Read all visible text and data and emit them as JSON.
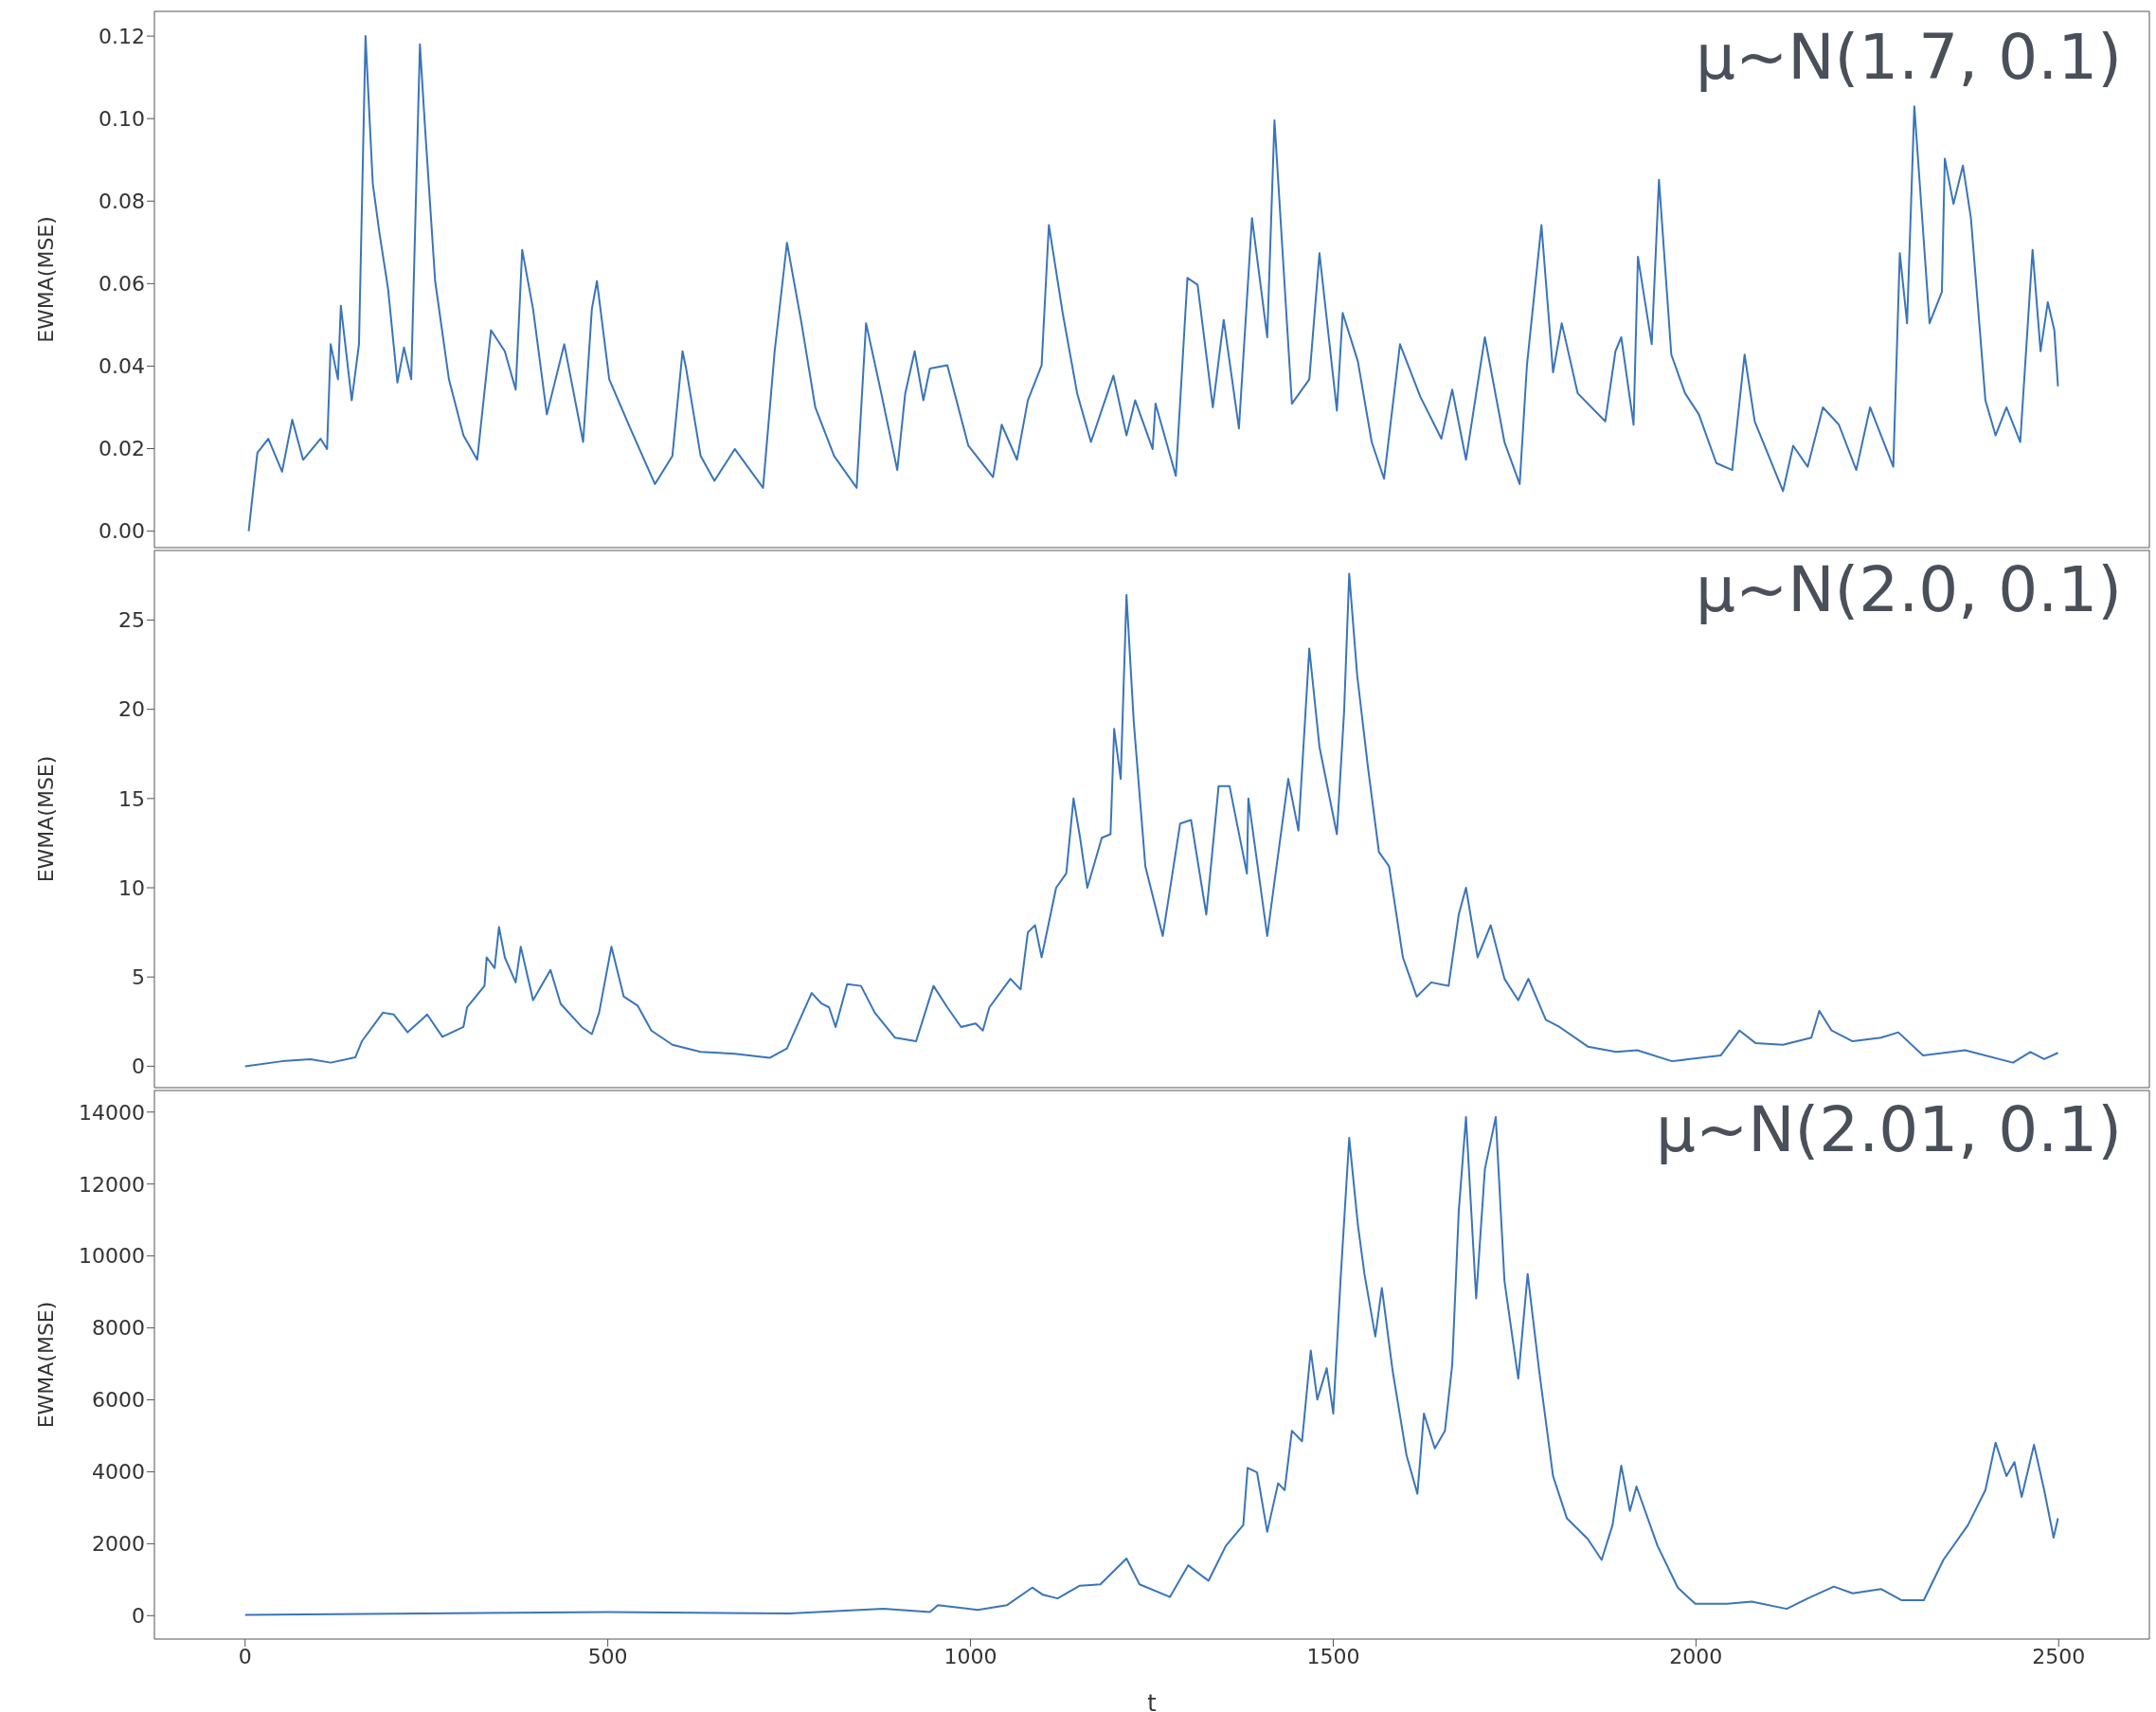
{
  "chart_data": [
    {
      "type": "line",
      "ylabel": "EWMA(MSE)",
      "annotations": [
        "μ~N(1.7, 0.1)"
      ],
      "xlim": [
        -125,
        2625
      ],
      "ylim": [
        -0.004,
        0.126
      ],
      "yticks": [
        {
          "value": 0,
          "label": "0.00"
        },
        0.02,
        0.04,
        0.06,
        0.08,
        {
          "value": 0.1,
          "label": "0.10"
        },
        0.12
      ],
      "tick_labels": "y",
      "marker": "none",
      "line_style": "solid",
      "series": [
        {
          "color": "#3a75b9",
          "x": [
            5,
            11,
            17,
            32,
            51,
            65,
            80,
            104,
            113,
            118,
            128,
            132,
            147,
            157,
            166,
            176,
            185,
            197,
            210,
            219,
            229,
            241,
            248,
            262,
            281,
            301,
            320,
            339,
            358,
            373,
            382,
            397,
            416,
            440,
            466,
            478,
            485,
            502,
            531,
            565,
            589,
            603,
            608,
            628,
            647,
            675,
            714,
            730,
            747,
            767,
            786,
            812,
            843,
            856,
            877,
            899,
            910,
            923,
            935,
            944,
            968,
            997,
            1031,
            1043,
            1064,
            1079,
            1098,
            1108,
            1127,
            1147,
            1166,
            1197,
            1215,
            1227,
            1251,
            1255,
            1283,
            1299,
            1313,
            1334,
            1349,
            1370,
            1388,
            1409,
            1419,
            1443,
            1467,
            1481,
            1505,
            1513,
            1534,
            1553,
            1570,
            1592,
            1620,
            1649,
            1664,
            1683,
            1709,
            1736,
            1757,
            1767,
            1787,
            1803,
            1815,
            1837,
            1875,
            1889,
            1897,
            1914,
            1920,
            1939,
            1949,
            1966,
            1985,
            2004,
            2028,
            2050,
            2067,
            2081,
            2120,
            2134,
            2154,
            2175,
            2197,
            2221,
            2240,
            2272,
            2281,
            2291,
            2301,
            2322,
            2339,
            2343,
            2355,
            2368,
            2379,
            2399,
            2413,
            2428,
            2447,
            2464,
            2475,
            2485,
            2494,
            2499
          ],
          "values": [
            0.0,
            0.0097,
            0.019,
            0.0224,
            0.0144,
            0.027,
            0.0173,
            0.0224,
            0.0199,
            0.0453,
            0.0368,
            0.0546,
            0.0317,
            0.0453,
            0.12,
            0.0843,
            0.0725,
            0.0589,
            0.036,
            0.0445,
            0.0368,
            0.118,
            0.098,
            0.0606,
            0.0368,
            0.0232,
            0.0173,
            0.0487,
            0.0436,
            0.0343,
            0.0682,
            0.0538,
            0.0283,
            0.0453,
            0.0216,
            0.0538,
            0.0606,
            0.0368,
            0.0249,
            0.0114,
            0.0182,
            0.0436,
            0.0394,
            0.0182,
            0.0122,
            0.0199,
            0.0105,
            0.0436,
            0.0699,
            0.0504,
            0.03,
            0.0182,
            0.0105,
            0.0504,
            0.0334,
            0.0148,
            0.0334,
            0.0436,
            0.0317,
            0.0394,
            0.0402,
            0.0207,
            0.0131,
            0.0258,
            0.0173,
            0.0317,
            0.0402,
            0.0742,
            0.0529,
            0.0334,
            0.0216,
            0.0377,
            0.0232,
            0.0317,
            0.0199,
            0.0309,
            0.0134,
            0.0614,
            0.0597,
            0.03,
            0.0512,
            0.0249,
            0.0759,
            0.047,
            0.0996,
            0.0309,
            0.0368,
            0.0674,
            0.0292,
            0.0529,
            0.0411,
            0.0216,
            0.0127,
            0.0453,
            0.0326,
            0.0224,
            0.0343,
            0.0173,
            0.047,
            0.0216,
            0.0114,
            0.0402,
            0.0742,
            0.0385,
            0.0504,
            0.0334,
            0.0266,
            0.0436,
            0.047,
            0.0258,
            0.0665,
            0.0453,
            0.0852,
            0.0428,
            0.0334,
            0.0283,
            0.0165,
            0.0148,
            0.0428,
            0.0266,
            0.0097,
            0.0207,
            0.0156,
            0.03,
            0.0258,
            0.0148,
            0.03,
            0.0156,
            0.0674,
            0.0504,
            0.103,
            0.0504,
            0.058,
            0.0903,
            0.0793,
            0.0886,
            0.0759,
            0.0317,
            0.0232,
            0.03,
            0.0216,
            0.0682,
            0.0436,
            0.0555,
            0.0487,
            0.0351
          ]
        }
      ]
    },
    {
      "type": "line",
      "ylabel": "EWMA(MSE)",
      "annotations": [
        "μ~N(2.0, 0.1)"
      ],
      "xlim": [
        -125,
        2625
      ],
      "ylim": [
        -1.2,
        28.9
      ],
      "yticks": [
        0,
        5,
        10,
        15,
        20,
        25
      ],
      "tick_labels": "y",
      "marker": "none",
      "line_style": "solid",
      "series": [
        {
          "color": "#3a75b9",
          "x": [
            0,
            51,
            90,
            118,
            152,
            161,
            190,
            205,
            224,
            243,
            251,
            272,
            301,
            306,
            330,
            333,
            344,
            350,
            358,
            373,
            380,
            397,
            421,
            435,
            464,
            478,
            488,
            505,
            522,
            541,
            560,
            589,
            628,
            675,
            723,
            747,
            781,
            795,
            805,
            814,
            830,
            849,
            868,
            896,
            925,
            949,
            968,
            987,
            1007,
            1017,
            1026,
            1055,
            1069,
            1079,
            1089,
            1098,
            1118,
            1132,
            1142,
            1151,
            1161,
            1181,
            1193,
            1198,
            1207,
            1215,
            1225,
            1241,
            1265,
            1289,
            1304,
            1325,
            1342,
            1357,
            1381,
            1383,
            1409,
            1438,
            1452,
            1467,
            1481,
            1505,
            1515,
            1522,
            1533,
            1548,
            1563,
            1577,
            1596,
            1615,
            1635,
            1659,
            1673,
            1683,
            1699,
            1717,
            1736,
            1755,
            1769,
            1793,
            1812,
            1851,
            1890,
            1919,
            1967,
            2034,
            2060,
            2082,
            2120,
            2159,
            2170,
            2187,
            2216,
            2255,
            2279,
            2313,
            2371,
            2437,
            2461,
            2480,
            2499
          ],
          "values": [
            0,
            0.28,
            0.39,
            0.2,
            0.5,
            1.4,
            3.0,
            2.9,
            1.9,
            2.6,
            2.9,
            1.65,
            2.2,
            3.3,
            4.5,
            6.1,
            5.5,
            7.8,
            6.1,
            4.7,
            6.7,
            3.7,
            5.4,
            3.5,
            2.2,
            1.8,
            3.0,
            6.7,
            3.9,
            3.4,
            2.0,
            1.2,
            0.8,
            0.7,
            0.47,
            1.0,
            4.1,
            3.5,
            3.3,
            2.2,
            4.6,
            4.5,
            3.0,
            1.6,
            1.4,
            4.5,
            3.3,
            2.2,
            2.4,
            2.0,
            3.3,
            4.9,
            4.3,
            7.5,
            7.9,
            6.1,
            10.0,
            10.8,
            15.0,
            12.8,
            10.0,
            12.8,
            13.0,
            18.9,
            16.1,
            26.4,
            19.3,
            11.2,
            7.3,
            13.6,
            13.8,
            8.5,
            15.7,
            15.7,
            10.8,
            15.0,
            7.3,
            16.1,
            13.2,
            23.4,
            17.9,
            13.0,
            19.9,
            27.6,
            21.9,
            16.7,
            12.0,
            11.2,
            6.1,
            3.9,
            4.7,
            4.5,
            8.5,
            10.0,
            6.1,
            7.9,
            4.9,
            3.7,
            4.9,
            2.6,
            2.2,
            1.1,
            0.8,
            0.9,
            0.28,
            0.6,
            2.0,
            1.3,
            1.2,
            1.6,
            3.1,
            2.0,
            1.4,
            1.6,
            1.9,
            0.6,
            0.9,
            0.2,
            0.8,
            0.4,
            0.75
          ]
        }
      ]
    },
    {
      "type": "line",
      "xlabel": "t",
      "ylabel": "EWMA(MSE)",
      "annotations": [
        "μ~N(2.01, 0.1)"
      ],
      "xlim": [
        -125,
        2625
      ],
      "ylim": [
        -650,
        14600
      ],
      "xticks": [
        0,
        500,
        1000,
        1500,
        2000,
        2500
      ],
      "yticks": [
        0,
        2000,
        4000,
        6000,
        8000,
        10000,
        12000,
        14000
      ],
      "marker": "none",
      "line_style": "solid",
      "series": [
        {
          "color": "#3a75b9",
          "x": [
            0,
            500,
            750,
            880,
            944,
            955,
            1010,
            1050,
            1085,
            1100,
            1120,
            1150,
            1166,
            1179,
            1215,
            1233,
            1275,
            1300,
            1328,
            1352,
            1376,
            1382,
            1395,
            1409,
            1424,
            1433,
            1443,
            1457,
            1469,
            1478,
            1491,
            1500,
            1510,
            1522,
            1534,
            1543,
            1558,
            1567,
            1582,
            1601,
            1616,
            1625,
            1640,
            1654,
            1664,
            1673,
            1683,
            1697,
            1709,
            1724,
            1736,
            1755,
            1768,
            1784,
            1803,
            1822,
            1851,
            1870,
            1885,
            1897,
            1909,
            1918,
            1947,
            1975,
            1999,
            2043,
            2077,
            2125,
            2154,
            2190,
            2216,
            2255,
            2283,
            2314,
            2341,
            2375,
            2399,
            2413,
            2428,
            2439,
            2449,
            2466,
            2480,
            2493,
            2499
          ],
          "values": [
            20,
            100,
            60,
            190,
            100,
            290,
            160,
            290,
            780,
            580,
            480,
            830,
            850,
            870,
            1590,
            870,
            520,
            1400,
            970,
            1940,
            2520,
            4110,
            3980,
            2330,
            3680,
            3490,
            5140,
            4850,
            7370,
            6010,
            6880,
            5620,
            9310,
            13280,
            10860,
            9500,
            7760,
            9110,
            6790,
            4460,
            3390,
            5620,
            4650,
            5140,
            6980,
            11250,
            13860,
            8820,
            12410,
            13860,
            9310,
            6590,
            9500,
            6790,
            3880,
            2710,
            2130,
            1550,
            2520,
            4170,
            2910,
            3590,
            1940,
            780,
            330,
            330,
            390,
            190,
            480,
            810,
            620,
            740,
            430,
            430,
            1550,
            2520,
            3490,
            4810,
            3880,
            4270,
            3300,
            4750,
            3490,
            2170,
            2710
          ]
        }
      ]
    }
  ]
}
